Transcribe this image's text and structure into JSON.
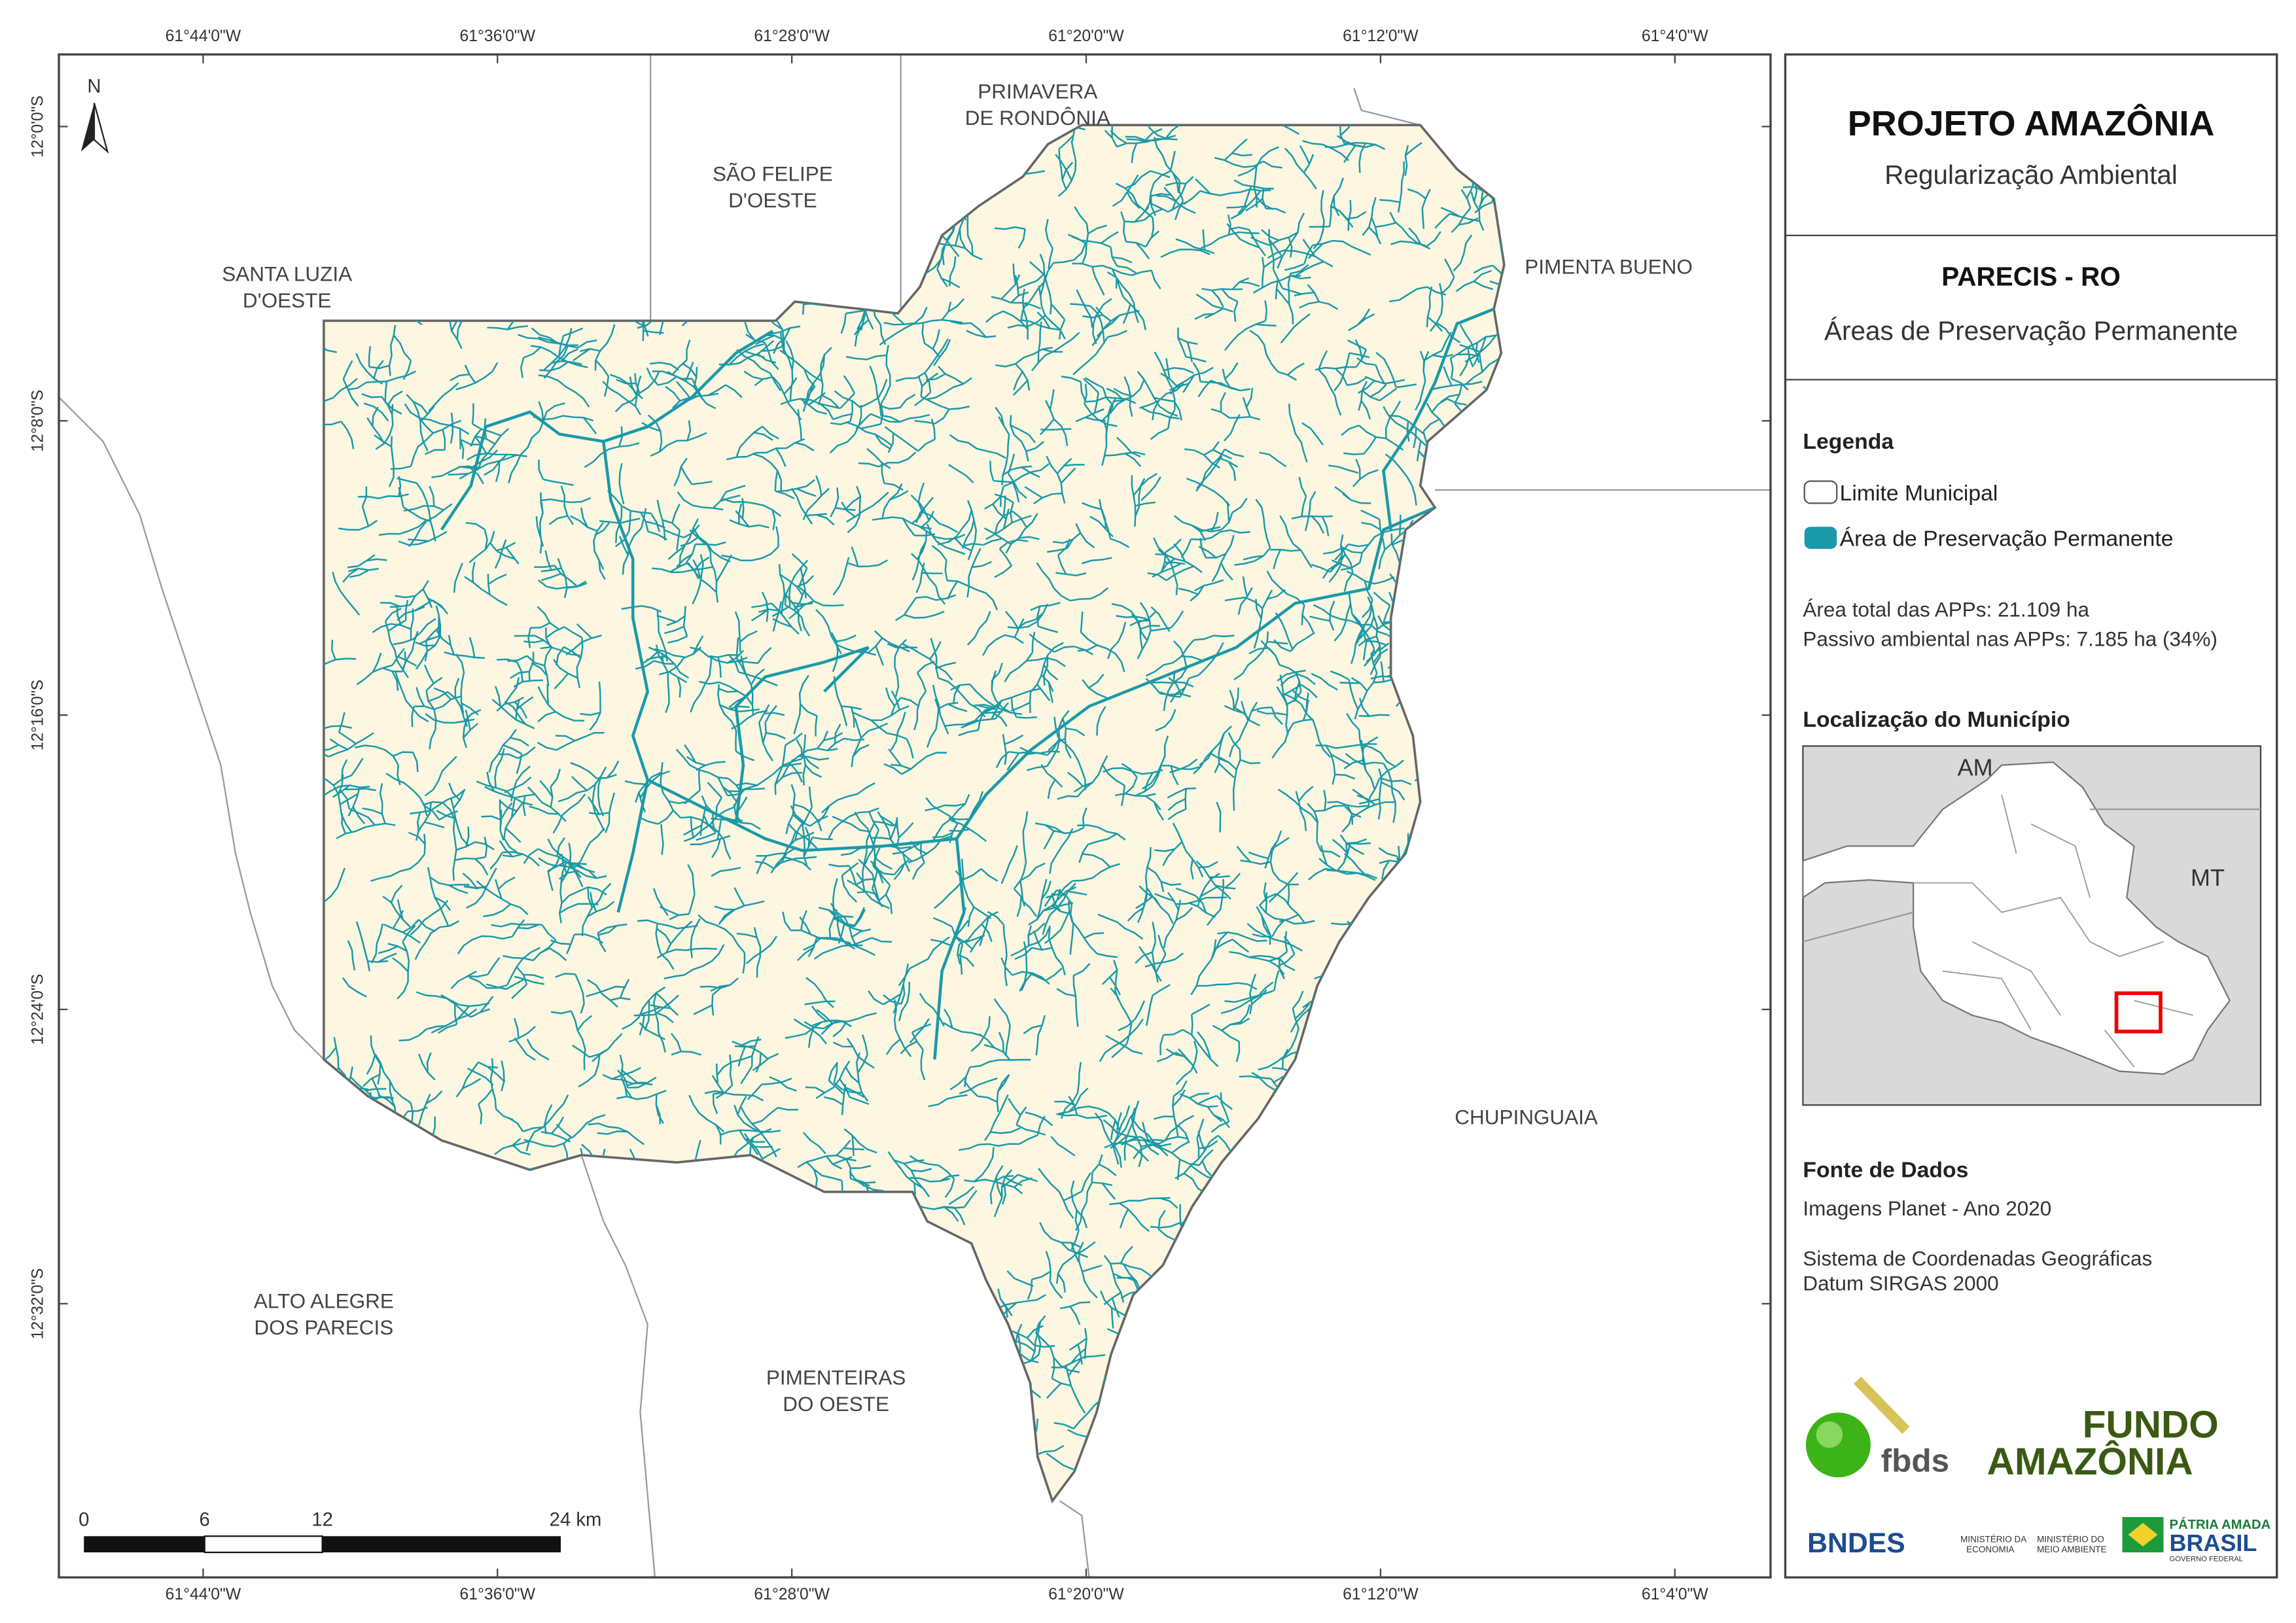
{
  "map": {
    "north": "N",
    "graticule": {
      "lon": [
        "61°44'0\"W",
        "61°36'0\"W",
        "61°28'0\"W",
        "61°20'0\"W",
        "61°12'0\"W",
        "61°4'0\"W"
      ],
      "lat": [
        "12°0'0\"S",
        "12°8'0\"S",
        "12°16'0\"S",
        "12°24'0\"S",
        "12°32'0\"S"
      ]
    },
    "municipalities": [
      [
        "PRIMAVERA",
        "DE RONDÔNIA"
      ],
      [
        "SÃO FELIPE",
        "D'OESTE"
      ],
      [
        "SANTA LUZIA",
        "D'OESTE"
      ],
      [
        "PIMENTA BUENO"
      ],
      [
        "CHUPINGUAIA"
      ],
      [
        "ALTO ALEGRE",
        "DOS PARECIS"
      ],
      [
        "PIMENTEIRAS",
        "DO OESTE"
      ]
    ],
    "scale_bar": [
      "0",
      "6",
      "12",
      "24 km"
    ]
  },
  "panel": {
    "title": "PROJETO AMAZÔNIA",
    "subtitle": "Regularização Ambiental",
    "place": "PARECIS - RO",
    "theme": "Áreas de Preservação Permanente",
    "legend": {
      "title": "Legenda",
      "items": [
        "Limite Municipal",
        "Área de Preservação Permanente"
      ]
    },
    "stats": [
      "Área total das APPs: 21.109 ha",
      "Passivo ambiental nas APPs: 7.185 ha (34%)"
    ],
    "location": {
      "title": "Localização do Município",
      "labels": [
        "AM",
        "MT"
      ]
    },
    "sources": {
      "title": "Fonte de Dados",
      "lines": [
        "Imagens Planet - Ano 2020",
        "Sistema de Coordenadas Geográficas",
        "Datum SIRGAS 2000"
      ]
    },
    "logos": [
      "fbds",
      "FUNDO",
      "AMAZÔNIA",
      "BNDES",
      "MINISTÉRIO DA",
      "ECONOMIA",
      "MINISTÉRIO DO",
      "MEIO AMBIENTE",
      "PÁTRIA AMADA",
      "BRASIL",
      "GOVERNO FEDERAL"
    ]
  }
}
